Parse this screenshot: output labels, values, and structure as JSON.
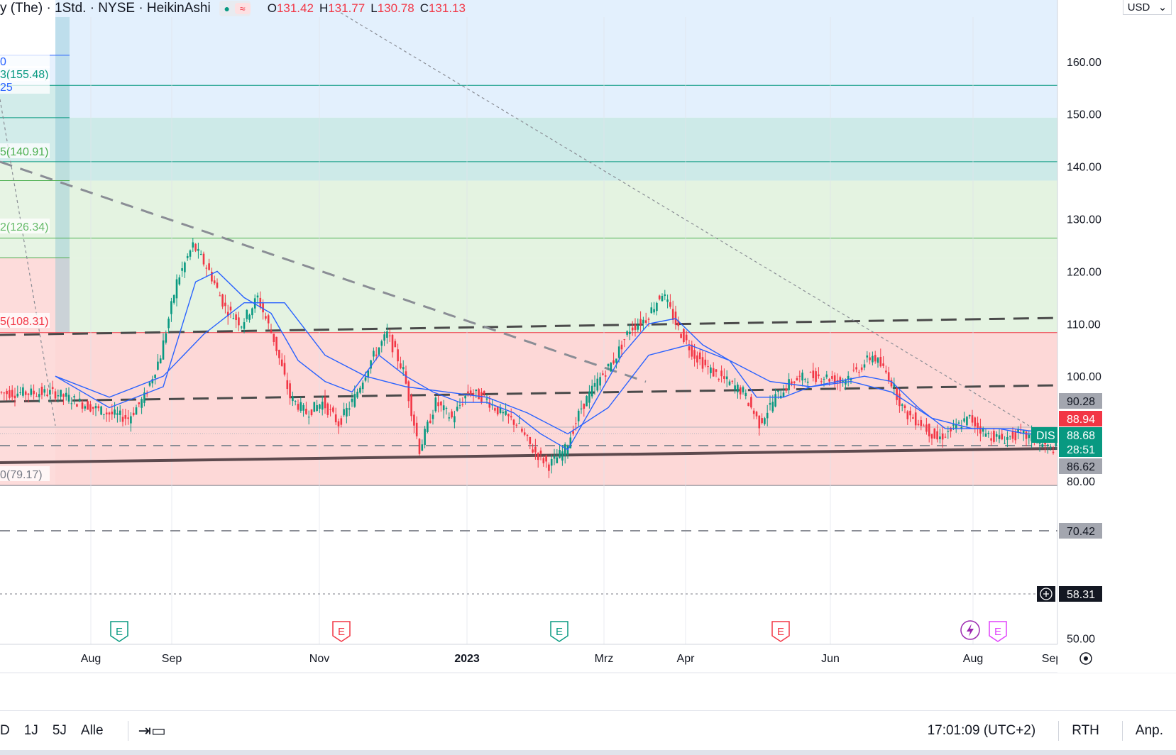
{
  "header": {
    "symbol_title": "y (The) · 1Std. · NYSE · HeikinAshi",
    "ohlc": {
      "o_label": "O",
      "o": "131.42",
      "h_label": "H",
      "h": "131.77",
      "l_label": "L",
      "l": "130.78",
      "c_label": "C",
      "c": "131.13"
    },
    "indicator_icons": [
      "dot-icon",
      "wave-icon"
    ]
  },
  "currency": "USD",
  "colors": {
    "up": "#089981",
    "down": "#f23645",
    "ma": "#2962ff",
    "blue_zone": "#e3f0fd",
    "teal_zone": "#cdeae8",
    "green_zone": "#e4f3e1",
    "red_zone": "#fdd8d7"
  },
  "fib_labels": [
    {
      "text": "0",
      "color": "#2962ff"
    },
    {
      "text": "3(155.48)",
      "color": "#089981"
    },
    {
      "text": "25",
      "color": "#2962ff"
    },
    {
      "text": "5(140.91)",
      "color": "#4caf50"
    },
    {
      "text": "2(126.34)",
      "color": "#66bb6a"
    },
    {
      "text": "5(108.31)",
      "color": "#f23645"
    },
    {
      "text": "0(79.17)",
      "color": "#787b86"
    }
  ],
  "price_badges": {
    "upper_level": "90.28",
    "current": "88.94",
    "symbol": "DIS",
    "symbol_price": "88.68",
    "countdown": "28:51",
    "lower_level": "86.62",
    "support": "70.42",
    "crosshair": "58.31"
  },
  "earnings_markers": [
    "E",
    "E",
    "E",
    "E",
    "E"
  ],
  "dividend_icon": "lightning-icon",
  "bottom_bar": {
    "ranges": [
      "D",
      "1J",
      "5J",
      "Alle"
    ],
    "time": "17:01:09 (UTC+2)",
    "session": "RTH",
    "adjust": "Anp."
  },
  "chart_data": {
    "type": "line",
    "ylim": [
      48,
      170
    ],
    "y_ticks": [
      "160.00",
      "150.00",
      "140.00",
      "130.00",
      "120.00",
      "110.00",
      "100.00",
      "80.00",
      "50.00"
    ],
    "x_ticks": [
      "Aug",
      "Sep",
      "Nov",
      "2023",
      "Mrz",
      "Apr",
      "Jun",
      "Aug",
      "Sep"
    ],
    "fib_levels": [
      161.2,
      155.48,
      149.3,
      140.91,
      137.3,
      126.34,
      122.6,
      108.31,
      79.17
    ],
    "horizontal_lines": [
      70.42,
      58.31
    ],
    "series": [
      {
        "values": [
          [
            0,
            97
          ],
          [
            10,
            95
          ],
          [
            20,
            93
          ],
          [
            28,
            92
          ],
          [
            34,
            96
          ],
          [
            40,
            104
          ],
          [
            46,
            118
          ],
          [
            52,
            125
          ],
          [
            58,
            120
          ],
          [
            64,
            113
          ],
          [
            70,
            110
          ],
          [
            76,
            115
          ],
          [
            82,
            107
          ],
          [
            88,
            96
          ],
          [
            94,
            93
          ],
          [
            100,
            95
          ],
          [
            106,
            91
          ],
          [
            112,
            96
          ],
          [
            118,
            103
          ],
          [
            124,
            108
          ],
          [
            130,
            101
          ],
          [
            136,
            86
          ],
          [
            142,
            95
          ],
          [
            148,
            92
          ],
          [
            154,
            97
          ],
          [
            160,
            96
          ],
          [
            166,
            93
          ],
          [
            172,
            91
          ],
          [
            178,
            86
          ],
          [
            184,
            83
          ],
          [
            190,
            86
          ],
          [
            196,
            94
          ],
          [
            202,
            99
          ],
          [
            208,
            103
          ],
          [
            214,
            109
          ],
          [
            220,
            111
          ],
          [
            226,
            116
          ],
          [
            232,
            109
          ],
          [
            238,
            104
          ],
          [
            244,
            101
          ],
          [
            250,
            99
          ],
          [
            256,
            97
          ],
          [
            262,
            91
          ],
          [
            268,
            96
          ],
          [
            274,
            99
          ],
          [
            280,
            100
          ],
          [
            286,
            100
          ],
          [
            292,
            99
          ],
          [
            298,
            101
          ],
          [
            304,
            104
          ],
          [
            310,
            100
          ],
          [
            316,
            93
          ],
          [
            322,
            91
          ],
          [
            328,
            88
          ],
          [
            334,
            90
          ],
          [
            340,
            92
          ],
          [
            346,
            89
          ],
          [
            352,
            88
          ],
          [
            358,
            89
          ],
          [
            364,
            88
          ],
          [
            370,
            86
          ],
          [
            376,
            88
          ]
        ]
      },
      {
        "values": [
          [
            0,
            100
          ],
          [
            20,
            94
          ],
          [
            40,
            98
          ],
          [
            52,
            118
          ],
          [
            60,
            120
          ],
          [
            70,
            115
          ],
          [
            80,
            112
          ],
          [
            90,
            103
          ],
          [
            100,
            99
          ],
          [
            110,
            97
          ],
          [
            120,
            104
          ],
          [
            130,
            100
          ],
          [
            140,
            97
          ],
          [
            150,
            95
          ],
          [
            160,
            95
          ],
          [
            170,
            93
          ],
          [
            180,
            89
          ],
          [
            190,
            86
          ],
          [
            200,
            95
          ],
          [
            210,
            104
          ],
          [
            220,
            110
          ],
          [
            230,
            111
          ],
          [
            240,
            106
          ],
          [
            250,
            103
          ],
          [
            260,
            96
          ],
          [
            270,
            96
          ],
          [
            280,
            98
          ],
          [
            290,
            99
          ],
          [
            300,
            100
          ],
          [
            310,
            99
          ],
          [
            320,
            94
          ],
          [
            330,
            90
          ],
          [
            340,
            90
          ],
          [
            350,
            90
          ],
          [
            360,
            89
          ],
          [
            370,
            89
          ],
          [
            376,
            89
          ]
        ]
      },
      {
        "values": [
          [
            0,
            100
          ],
          [
            20,
            96
          ],
          [
            40,
            100
          ],
          [
            55,
            108
          ],
          [
            70,
            114
          ],
          [
            85,
            114
          ],
          [
            100,
            104
          ],
          [
            115,
            100
          ],
          [
            130,
            98
          ],
          [
            145,
            97
          ],
          [
            160,
            96
          ],
          [
            175,
            93
          ],
          [
            190,
            89
          ],
          [
            205,
            94
          ],
          [
            220,
            104
          ],
          [
            235,
            106
          ],
          [
            250,
            103
          ],
          [
            265,
            99
          ],
          [
            280,
            98
          ],
          [
            295,
            99
          ],
          [
            310,
            97
          ],
          [
            325,
            92
          ],
          [
            340,
            90
          ],
          [
            355,
            90
          ],
          [
            370,
            89
          ],
          [
            376,
            89
          ]
        ]
      }
    ]
  }
}
